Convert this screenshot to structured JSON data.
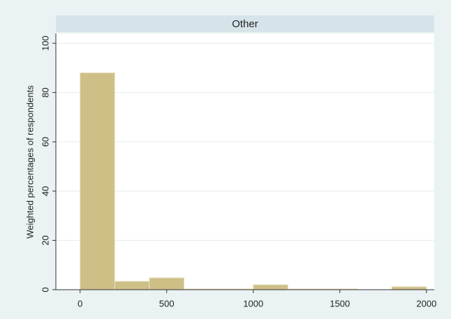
{
  "chart_data": {
    "type": "histogram",
    "title": "Other",
    "ylabel": "Weighted percentages of respondents",
    "bins": [
      0,
      200,
      400,
      600,
      800,
      1000,
      1200,
      1400,
      1600,
      1800,
      2000
    ],
    "values": [
      88,
      3.4,
      4.8,
      0.3,
      0.3,
      2,
      0.3,
      0.3,
      0,
      1.2
    ],
    "color": "#cdbf86",
    "xlim": [
      -140,
      2045
    ],
    "xticks": [
      0,
      500,
      1000,
      1500,
      2000
    ],
    "ylim": [
      0,
      100
    ],
    "yticks": [
      0,
      20,
      40,
      60,
      80,
      100
    ],
    "grid": true
  }
}
